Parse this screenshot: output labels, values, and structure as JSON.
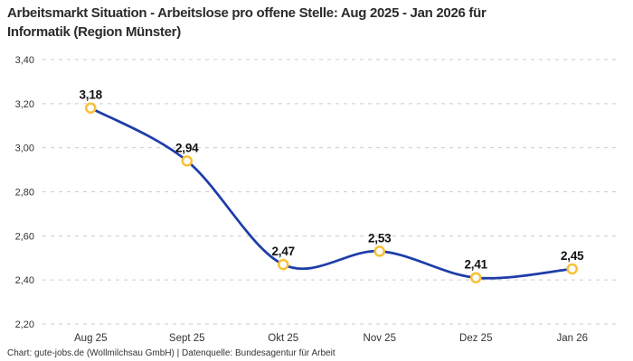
{
  "title": {
    "line1": "Arbeitsmarkt Situation - Arbeitslose pro offene Stelle: Aug 2025 - Jan 2026 für",
    "line2": "Informatik (Region Münster)"
  },
  "footer": {
    "text": "Chart: gute-jobs.de (Wollmilchsau GmbH) | Datenquelle: Bundesagentur für Arbeit"
  },
  "chart_data": {
    "type": "line",
    "title": "Arbeitsmarkt Situation - Arbeitslose pro offene Stelle: Aug 2025 - Jan 2026 für Informatik (Region Münster)",
    "categories": [
      "Aug 25",
      "Sept 25",
      "Okt 25",
      "Nov 25",
      "Dez 25",
      "Jan 26"
    ],
    "values": [
      3.18,
      2.94,
      2.47,
      2.53,
      2.41,
      2.45
    ],
    "value_labels": [
      "3,18",
      "2,94",
      "2,47",
      "2,53",
      "2,41",
      "2,45"
    ],
    "y_ticks": [
      2.2,
      2.4,
      2.6,
      2.8,
      3.0,
      3.2,
      3.4
    ],
    "y_tick_labels": [
      "2,20",
      "2,40",
      "2,60",
      "2,80",
      "3,00",
      "3,20",
      "3,40"
    ],
    "ylim": [
      2.2,
      3.4
    ],
    "xlabel": "",
    "ylabel": "",
    "legend": "none",
    "grid": "horizontal-dashed",
    "curve": "smooth",
    "colors": {
      "line": "#1E3DA8",
      "marker_ring": "#F9C036",
      "marker_fill": "#FFFFFF",
      "grid": "#CCCCCC",
      "tick_text": "#333333",
      "label_text": "#111111"
    }
  }
}
